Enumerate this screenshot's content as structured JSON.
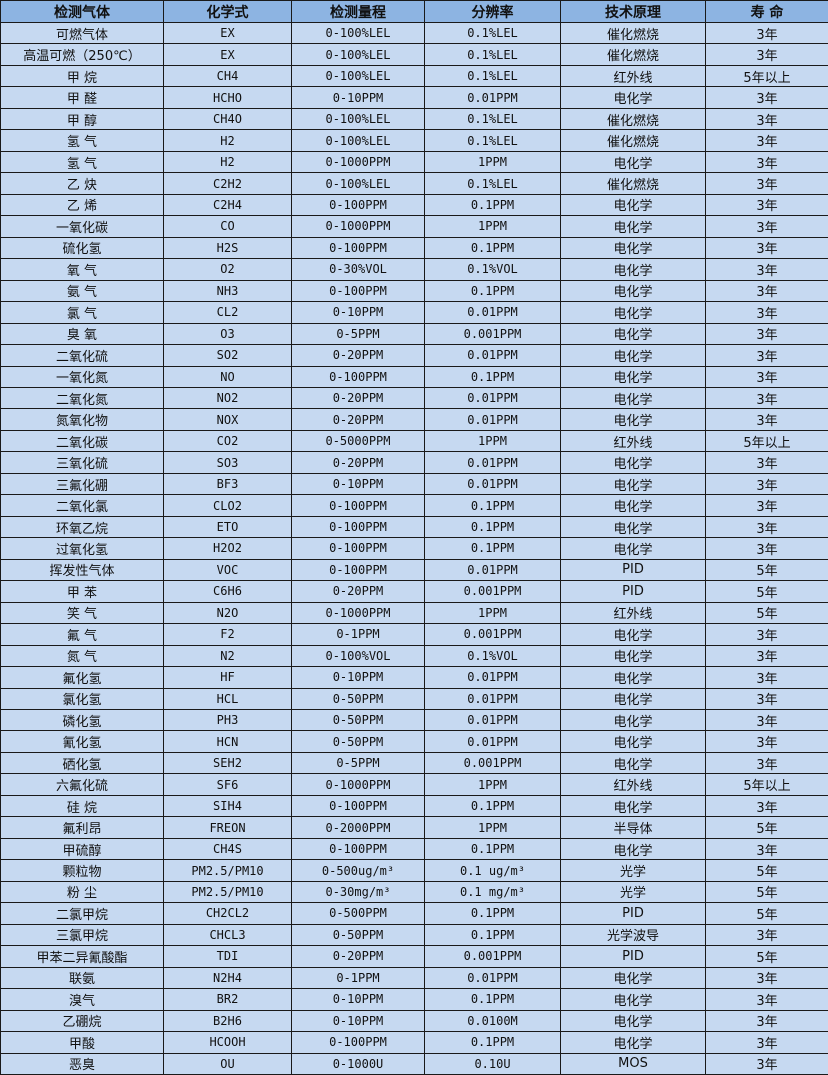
{
  "colors": {
    "header_bg": "#8db4e2",
    "row_bg": "#c6d9f1",
    "border": "#1a1a1a"
  },
  "headers": [
    "检测气体",
    "化学式",
    "检测量程",
    "分辨率",
    "技术原理",
    "寿 命"
  ],
  "rows": [
    [
      "可燃气体",
      "EX",
      "0-100%LEL",
      "0.1%LEL",
      "催化燃烧",
      "3年"
    ],
    [
      "高温可燃（250℃）",
      "EX",
      "0-100%LEL",
      "0.1%LEL",
      "催化燃烧",
      "3年"
    ],
    [
      "甲 烷",
      "CH4",
      "0-100%LEL",
      "0.1%LEL",
      "红外线",
      "5年以上"
    ],
    [
      "甲 醛",
      "HCHO",
      "0-10PPM",
      "0.01PPM",
      "电化学",
      "3年"
    ],
    [
      "甲 醇",
      "CH4O",
      "0-100%LEL",
      "0.1%LEL",
      "催化燃烧",
      "3年"
    ],
    [
      "氢 气",
      "H2",
      "0-100%LEL",
      "0.1%LEL",
      "催化燃烧",
      "3年"
    ],
    [
      "氢 气",
      "H2",
      "0-1000PPM",
      "1PPM",
      "电化学",
      "3年"
    ],
    [
      "乙 炔",
      "C2H2",
      "0-100%LEL",
      "0.1%LEL",
      "催化燃烧",
      "3年"
    ],
    [
      "乙 烯",
      "C2H4",
      "0-100PPM",
      "0.1PPM",
      "电化学",
      "3年"
    ],
    [
      "一氧化碳",
      "CO",
      "0-1000PPM",
      "1PPM",
      "电化学",
      "3年"
    ],
    [
      "硫化氢",
      "H2S",
      "0-100PPM",
      "0.1PPM",
      "电化学",
      "3年"
    ],
    [
      "氧 气",
      "O2",
      "0-30%VOL",
      "0.1%VOL",
      "电化学",
      "3年"
    ],
    [
      "氨 气",
      "NH3",
      "0-100PPM",
      "0.1PPM",
      "电化学",
      "3年"
    ],
    [
      "氯 气",
      "CL2",
      "0-10PPM",
      "0.01PPM",
      "电化学",
      "3年"
    ],
    [
      "臭 氧",
      "O3",
      "0-5PPM",
      "0.001PPM",
      "电化学",
      "3年"
    ],
    [
      "二氧化硫",
      "SO2",
      "0-20PPM",
      "0.01PPM",
      "电化学",
      "3年"
    ],
    [
      "一氧化氮",
      "NO",
      "0-100PPM",
      "0.1PPM",
      "电化学",
      "3年"
    ],
    [
      "二氧化氮",
      "NO2",
      "0-20PPM",
      "0.01PPM",
      "电化学",
      "3年"
    ],
    [
      "氮氧化物",
      "NOX",
      "0-20PPM",
      "0.01PPM",
      "电化学",
      "3年"
    ],
    [
      "二氧化碳",
      "CO2",
      "0-5000PPM",
      "1PPM",
      "红外线",
      "5年以上"
    ],
    [
      "三氧化硫",
      "SO3",
      "0-20PPM",
      "0.01PPM",
      "电化学",
      "3年"
    ],
    [
      "三氟化硼",
      "BF3",
      "0-10PPM",
      "0.01PPM",
      "电化学",
      "3年"
    ],
    [
      "二氧化氯",
      "CLO2",
      "0-100PPM",
      "0.1PPM",
      "电化学",
      "3年"
    ],
    [
      "环氧乙烷",
      "ETO",
      "0-100PPM",
      "0.1PPM",
      "电化学",
      "3年"
    ],
    [
      "过氧化氢",
      "H2O2",
      "0-100PPM",
      "0.1PPM",
      "电化学",
      "3年"
    ],
    [
      "挥发性气体",
      "VOC",
      "0-100PPM",
      "0.01PPM",
      "PID",
      "5年"
    ],
    [
      "甲 苯",
      "C6H6",
      "0-20PPM",
      "0.001PPM",
      "PID",
      "5年"
    ],
    [
      "笑 气",
      "N2O",
      "0-1000PPM",
      "1PPM",
      "红外线",
      "5年"
    ],
    [
      "氟 气",
      "F2",
      "0-1PPM",
      "0.001PPM",
      "电化学",
      "3年"
    ],
    [
      "氮 气",
      "N2",
      "0-100%VOL",
      "0.1%VOL",
      "电化学",
      "3年"
    ],
    [
      "氟化氢",
      "HF",
      "0-10PPM",
      "0.01PPM",
      "电化学",
      "3年"
    ],
    [
      "氯化氢",
      "HCL",
      "0-50PPM",
      "0.01PPM",
      "电化学",
      "3年"
    ],
    [
      "磷化氢",
      "PH3",
      "0-50PPM",
      "0.01PPM",
      "电化学",
      "3年"
    ],
    [
      "氰化氢",
      "HCN",
      "0-50PPM",
      "0.01PPM",
      "电化学",
      "3年"
    ],
    [
      "硒化氢",
      "SEH2",
      "0-5PPM",
      "0.001PPM",
      "电化学",
      "3年"
    ],
    [
      "六氟化硫",
      "SF6",
      "0-1000PPM",
      "1PPM",
      "红外线",
      "5年以上"
    ],
    [
      "硅 烷",
      "SIH4",
      "0-100PPM",
      "0.1PPM",
      "电化学",
      "3年"
    ],
    [
      "氟利昂",
      "FREON",
      "0-2000PPM",
      "1PPM",
      "半导体",
      "5年"
    ],
    [
      "甲硫醇",
      "CH4S",
      "0-100PPM",
      "0.1PPM",
      "电化学",
      "3年"
    ],
    [
      "颗粒物",
      "PM2.5/PM10",
      "0-500ug/m³",
      "0.1 ug/m³",
      "光学",
      "5年"
    ],
    [
      "粉 尘",
      "PM2.5/PM10",
      "0-30mg/m³",
      "0.1 mg/m³",
      "光学",
      "5年"
    ],
    [
      "二氯甲烷",
      "CH2CL2",
      "0-500PPM",
      "0.1PPM",
      "PID",
      "5年"
    ],
    [
      "三氯甲烷",
      "CHCL3",
      "0-50PPM",
      "0.1PPM",
      "光学波导",
      "3年"
    ],
    [
      "甲苯二异氰酸酯",
      "TDI",
      "0-20PPM",
      "0.001PPM",
      "PID",
      "5年"
    ],
    [
      "联氨",
      "N2H4",
      "0-1PPM",
      "0.01PPM",
      "电化学",
      "3年"
    ],
    [
      "溴气",
      "BR2",
      "0-10PPM",
      "0.1PPM",
      "电化学",
      "3年"
    ],
    [
      "乙硼烷",
      "B2H6",
      "0-10PPM",
      "0.0100M",
      "电化学",
      "3年"
    ],
    [
      "甲酸",
      "HCOOH",
      "0-100PPM",
      "0.1PPM",
      "电化学",
      "3年"
    ],
    [
      "恶臭",
      "OU",
      "0-1000U",
      "0.10U",
      "MOS",
      "3年"
    ]
  ]
}
